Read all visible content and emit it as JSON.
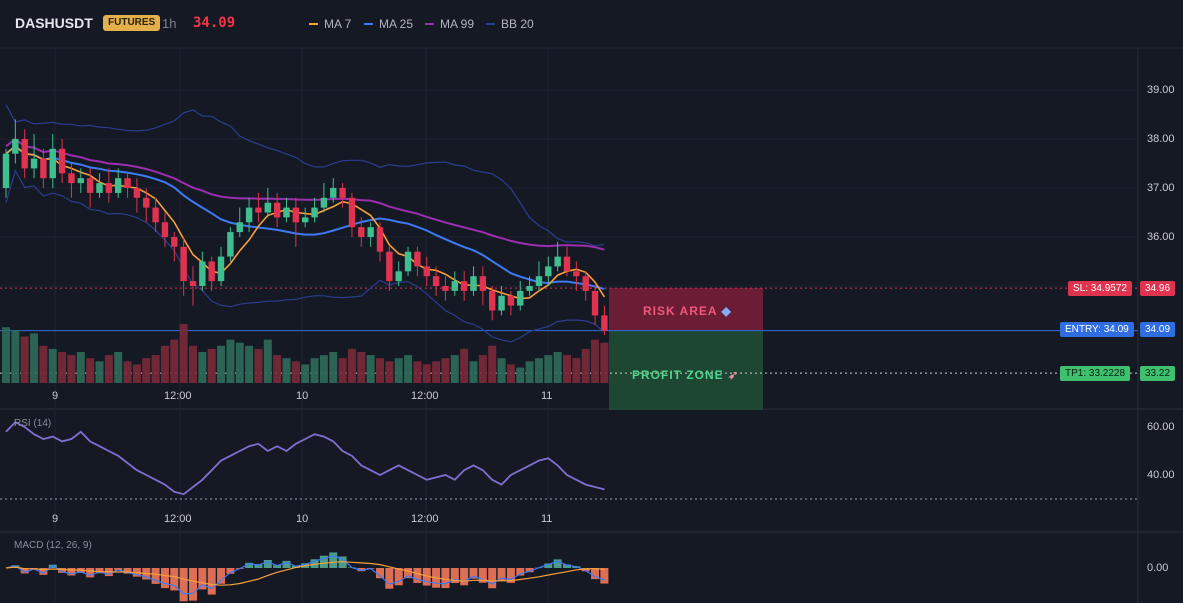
{
  "header": {
    "symbol": "DASHUSDT",
    "market_badge": "FUTURES",
    "timeframe": "1h",
    "last_price": "34.09",
    "indicators": [
      {
        "label": "MA 7",
        "color": "#f7a13b"
      },
      {
        "label": "MA 25",
        "color": "#3d7bf5"
      },
      {
        "label": "MA 99",
        "color": "#9c2fb0"
      },
      {
        "label": "BB 20",
        "color": "#2b3d8f"
      }
    ]
  },
  "colors": {
    "up": "#3fbf8f",
    "down": "#e0334f",
    "risk_zone": "#7a1f3a",
    "profit_zone": "#1e4d34",
    "entry": "#2f6de0",
    "sl": "#e0334f",
    "tp": "#3fc06f"
  },
  "price_axis": {
    "ticks": [
      "39.00",
      "38.00",
      "37.00",
      "36.00"
    ]
  },
  "time_axis": {
    "labels": [
      "9",
      "12:00",
      "10",
      "12:00",
      "11"
    ]
  },
  "trade": {
    "risk_label": "RISK AREA",
    "risk_icon": "shield-icon",
    "profit_label": "PROFIT ZONE",
    "profit_icon": "rocket-icon",
    "sl_tag": "SL: 34.9572",
    "sl_price": "34.96",
    "entry_tag": "ENTRY: 34.09",
    "entry_price": "34.09",
    "tp_tag": "TP1: 33.2228",
    "tp_price": "33.22"
  },
  "rsi": {
    "title": "RSI (14)",
    "ticks": [
      "60.00",
      "40.00"
    ]
  },
  "macd": {
    "title": "MACD (12, 26, 9)",
    "ticks": [
      "0.00"
    ]
  },
  "chart_data": {
    "type": "candlestick",
    "symbol": "DASHUSDT",
    "timeframe": "1h",
    "ylim": [
      33.0,
      39.4
    ],
    "candles": [
      [
        37.0,
        37.7,
        37.8,
        36.8
      ],
      [
        37.7,
        38.0,
        38.4,
        37.5
      ],
      [
        38.0,
        37.4,
        38.2,
        37.2
      ],
      [
        37.4,
        37.6,
        38.1,
        37.2
      ],
      [
        37.6,
        37.2,
        37.8,
        37.0
      ],
      [
        37.2,
        37.8,
        38.1,
        37.0
      ],
      [
        37.8,
        37.3,
        38.0,
        37.1
      ],
      [
        37.3,
        37.1,
        37.5,
        36.8
      ],
      [
        37.1,
        37.2,
        37.4,
        36.9
      ],
      [
        37.2,
        36.9,
        37.4,
        36.6
      ],
      [
        36.9,
        37.1,
        37.3,
        36.8
      ],
      [
        37.1,
        36.9,
        37.4,
        36.7
      ],
      [
        36.9,
        37.2,
        37.4,
        36.8
      ],
      [
        37.2,
        37.0,
        37.3,
        36.8
      ],
      [
        37.0,
        36.8,
        37.2,
        36.5
      ],
      [
        36.8,
        36.6,
        37.0,
        36.3
      ],
      [
        36.6,
        36.3,
        36.8,
        36.1
      ],
      [
        36.3,
        36.0,
        36.5,
        35.8
      ],
      [
        36.0,
        35.8,
        36.1,
        35.5
      ],
      [
        35.8,
        35.1,
        36.0,
        34.8
      ],
      [
        35.1,
        35.0,
        35.4,
        34.6
      ],
      [
        35.0,
        35.5,
        35.7,
        34.9
      ],
      [
        35.5,
        35.1,
        35.6,
        34.9
      ],
      [
        35.1,
        35.6,
        35.8,
        35.0
      ],
      [
        35.6,
        36.1,
        36.2,
        35.5
      ],
      [
        36.1,
        36.3,
        36.6,
        36.0
      ],
      [
        36.3,
        36.6,
        36.8,
        36.1
      ],
      [
        36.6,
        36.5,
        36.9,
        36.3
      ],
      [
        36.5,
        36.7,
        37.0,
        36.4
      ],
      [
        36.7,
        36.4,
        36.9,
        36.2
      ],
      [
        36.4,
        36.6,
        36.8,
        36.3
      ],
      [
        36.6,
        36.3,
        36.8,
        35.8
      ],
      [
        36.3,
        36.4,
        36.6,
        36.2
      ],
      [
        36.4,
        36.6,
        36.8,
        36.3
      ],
      [
        36.6,
        36.8,
        37.1,
        36.5
      ],
      [
        36.8,
        37.0,
        37.2,
        36.7
      ],
      [
        37.0,
        36.8,
        37.1,
        36.6
      ],
      [
        36.8,
        36.2,
        36.9,
        36.0
      ],
      [
        36.2,
        36.0,
        36.4,
        35.8
      ],
      [
        36.0,
        36.2,
        36.3,
        35.8
      ],
      [
        36.2,
        35.7,
        36.3,
        35.5
      ],
      [
        35.7,
        35.1,
        35.8,
        34.9
      ],
      [
        35.1,
        35.3,
        35.5,
        35.0
      ],
      [
        35.3,
        35.7,
        35.8,
        35.2
      ],
      [
        35.7,
        35.4,
        35.8,
        35.2
      ],
      [
        35.4,
        35.2,
        35.6,
        35.0
      ],
      [
        35.2,
        35.0,
        35.4,
        34.8
      ],
      [
        35.0,
        34.9,
        35.2,
        34.7
      ],
      [
        34.9,
        35.1,
        35.3,
        34.8
      ],
      [
        35.1,
        34.9,
        35.3,
        34.7
      ],
      [
        34.9,
        35.2,
        35.4,
        34.8
      ],
      [
        35.2,
        34.9,
        35.4,
        34.6
      ],
      [
        34.9,
        34.5,
        35.0,
        34.3
      ],
      [
        34.5,
        34.8,
        35.0,
        34.4
      ],
      [
        34.8,
        34.6,
        34.9,
        34.4
      ],
      [
        34.6,
        34.9,
        35.1,
        34.5
      ],
      [
        34.9,
        35.0,
        35.2,
        34.8
      ],
      [
        35.0,
        35.2,
        35.5,
        34.9
      ],
      [
        35.2,
        35.4,
        35.6,
        35.0
      ],
      [
        35.4,
        35.6,
        35.9,
        35.3
      ],
      [
        35.6,
        35.3,
        35.8,
        35.2
      ],
      [
        35.3,
        35.2,
        35.5,
        34.9
      ],
      [
        35.2,
        34.9,
        35.3,
        34.7
      ],
      [
        34.9,
        34.4,
        35.0,
        34.2
      ],
      [
        34.4,
        34.09,
        34.6,
        34.0
      ]
    ],
    "volume": [
      0.9,
      0.85,
      0.75,
      0.8,
      0.6,
      0.55,
      0.5,
      0.45,
      0.5,
      0.4,
      0.35,
      0.45,
      0.5,
      0.35,
      0.3,
      0.4,
      0.45,
      0.6,
      0.7,
      0.95,
      0.6,
      0.5,
      0.55,
      0.6,
      0.7,
      0.65,
      0.6,
      0.55,
      0.7,
      0.45,
      0.4,
      0.35,
      0.3,
      0.4,
      0.45,
      0.5,
      0.4,
      0.55,
      0.5,
      0.45,
      0.4,
      0.35,
      0.4,
      0.45,
      0.35,
      0.3,
      0.35,
      0.4,
      0.45,
      0.55,
      0.35,
      0.45,
      0.6,
      0.4,
      0.3,
      0.25,
      0.35,
      0.4,
      0.45,
      0.5,
      0.45,
      0.4,
      0.55,
      0.7,
      0.65
    ],
    "rsi_values": [
      58,
      62,
      60,
      57,
      55,
      56,
      54,
      55,
      58,
      54,
      52,
      50,
      48,
      45,
      42,
      40,
      38,
      36,
      33,
      32,
      35,
      38,
      42,
      46,
      48,
      50,
      52,
      53,
      50,
      52,
      50,
      53,
      55,
      57,
      56,
      54,
      50,
      48,
      44,
      42,
      40,
      42,
      44,
      42,
      40,
      38,
      39,
      40,
      38,
      42,
      44,
      42,
      38,
      36,
      40,
      42,
      44,
      46,
      47,
      44,
      40,
      38,
      36,
      35,
      34
    ]
  }
}
